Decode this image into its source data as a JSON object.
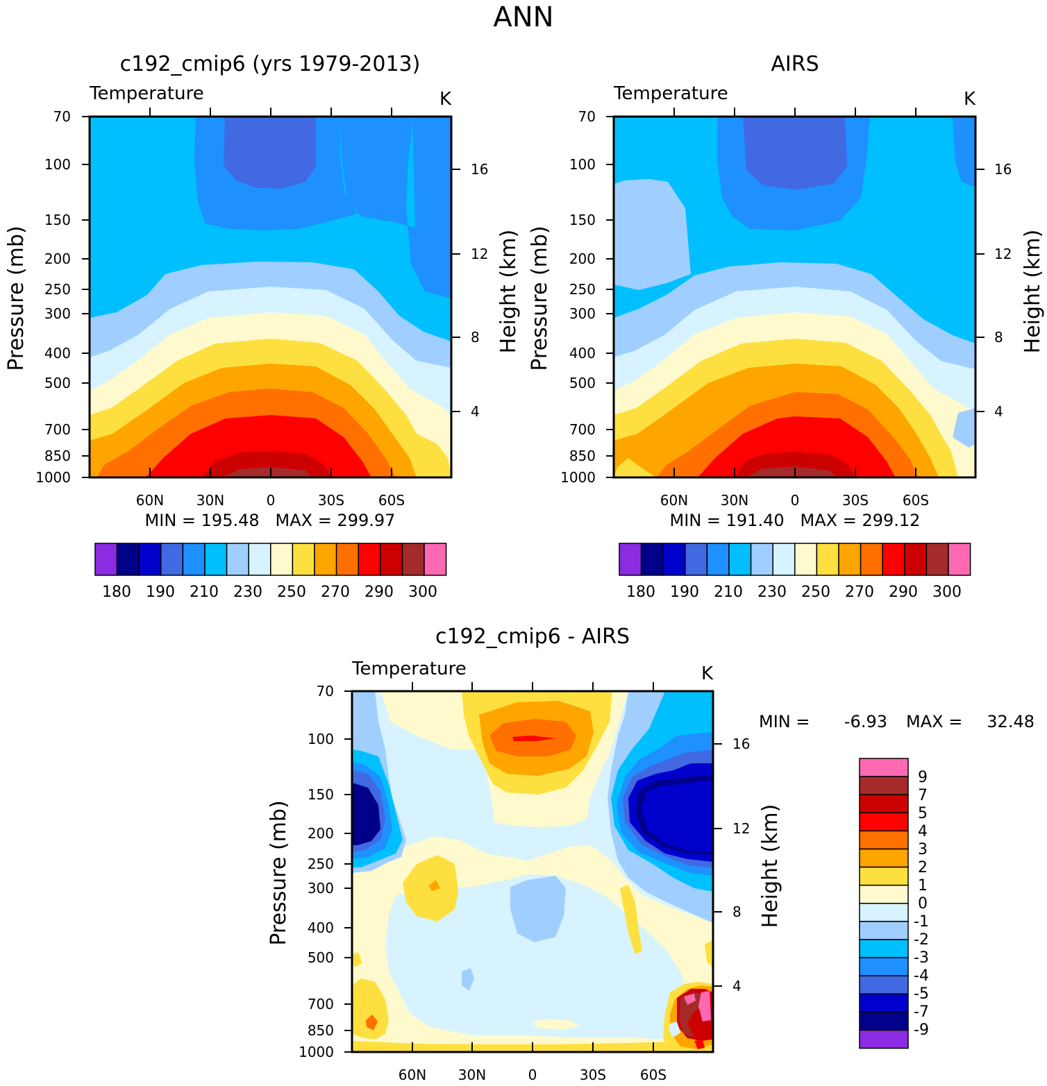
{
  "figure_title": "ANN",
  "chart_data": [
    {
      "type": "contour",
      "title": "c192_cmip6 (yrs 1979-2013)",
      "left_label": "Temperature",
      "units": "K",
      "ylabel": "Pressure (mb)",
      "y2label": "Height (km)",
      "x_ticks": [
        "60N",
        "30N",
        "0",
        "30S",
        "60S"
      ],
      "y_ticks": [
        "70",
        "100",
        "150",
        "200",
        "250",
        "300",
        "400",
        "500",
        "700",
        "850",
        "1000"
      ],
      "y2_ticks": [
        "16",
        "12",
        "8",
        "4"
      ],
      "stats": "MIN = 195.48   MAX = 299.97",
      "colorbar_labels": [
        "180",
        "190",
        "210",
        "230",
        "250",
        "270",
        "290",
        "300"
      ]
    },
    {
      "type": "contour",
      "title": "AIRS",
      "left_label": "Temperature",
      "units": "K",
      "ylabel": "Pressure (mb)",
      "y2label": "Height (km)",
      "x_ticks": [
        "60N",
        "30N",
        "0",
        "30S",
        "60S"
      ],
      "y_ticks": [
        "70",
        "100",
        "150",
        "200",
        "250",
        "300",
        "400",
        "500",
        "700",
        "850",
        "1000"
      ],
      "y2_ticks": [
        "16",
        "12",
        "8",
        "4"
      ],
      "stats": "MIN = 191.40   MAX = 299.12",
      "colorbar_labels": [
        "180",
        "190",
        "210",
        "230",
        "250",
        "270",
        "290",
        "300"
      ]
    },
    {
      "type": "contour",
      "title": "c192_cmip6 - AIRS",
      "left_label": "Temperature",
      "units": "K",
      "ylabel": "Pressure (mb)",
      "y2label": "Height (km)",
      "x_ticks": [
        "60N",
        "30N",
        "0",
        "30S",
        "60S"
      ],
      "y_ticks": [
        "70",
        "100",
        "150",
        "200",
        "250",
        "300",
        "400",
        "500",
        "700",
        "850",
        "1000"
      ],
      "y2_ticks": [
        "16",
        "12",
        "8",
        "4"
      ],
      "min_label": "MIN =",
      "min_value": "-6.93",
      "max_label": "MAX =",
      "max_value": "32.48",
      "colorbar_labels": [
        "9",
        "7",
        "5",
        "4",
        "3",
        "2",
        "1",
        "0",
        "-1",
        "-2",
        "-3",
        "-4",
        "-5",
        "-7",
        "-9"
      ]
    }
  ],
  "colors": {
    "abs_scale": [
      "#8b2be2",
      "#00008b",
      "#0000cd",
      "#4169e1",
      "#1e90ff",
      "#00bfff",
      "#a0cfff",
      "#d6f3ff",
      "#fffacd",
      "#fde040",
      "#ffa500",
      "#ff7000",
      "#ff0000",
      "#cd0000",
      "#a52a2a",
      "#ff69b4"
    ],
    "diff_scale": [
      "#ff69b4",
      "#a52a2a",
      "#cd0000",
      "#ff0000",
      "#ff7000",
      "#ffa500",
      "#fde040",
      "#fffacd",
      "#d6f3ff",
      "#a0cfff",
      "#00bfff",
      "#1e90ff",
      "#4169e1",
      "#0000cd",
      "#00008b",
      "#8b2be2"
    ]
  }
}
